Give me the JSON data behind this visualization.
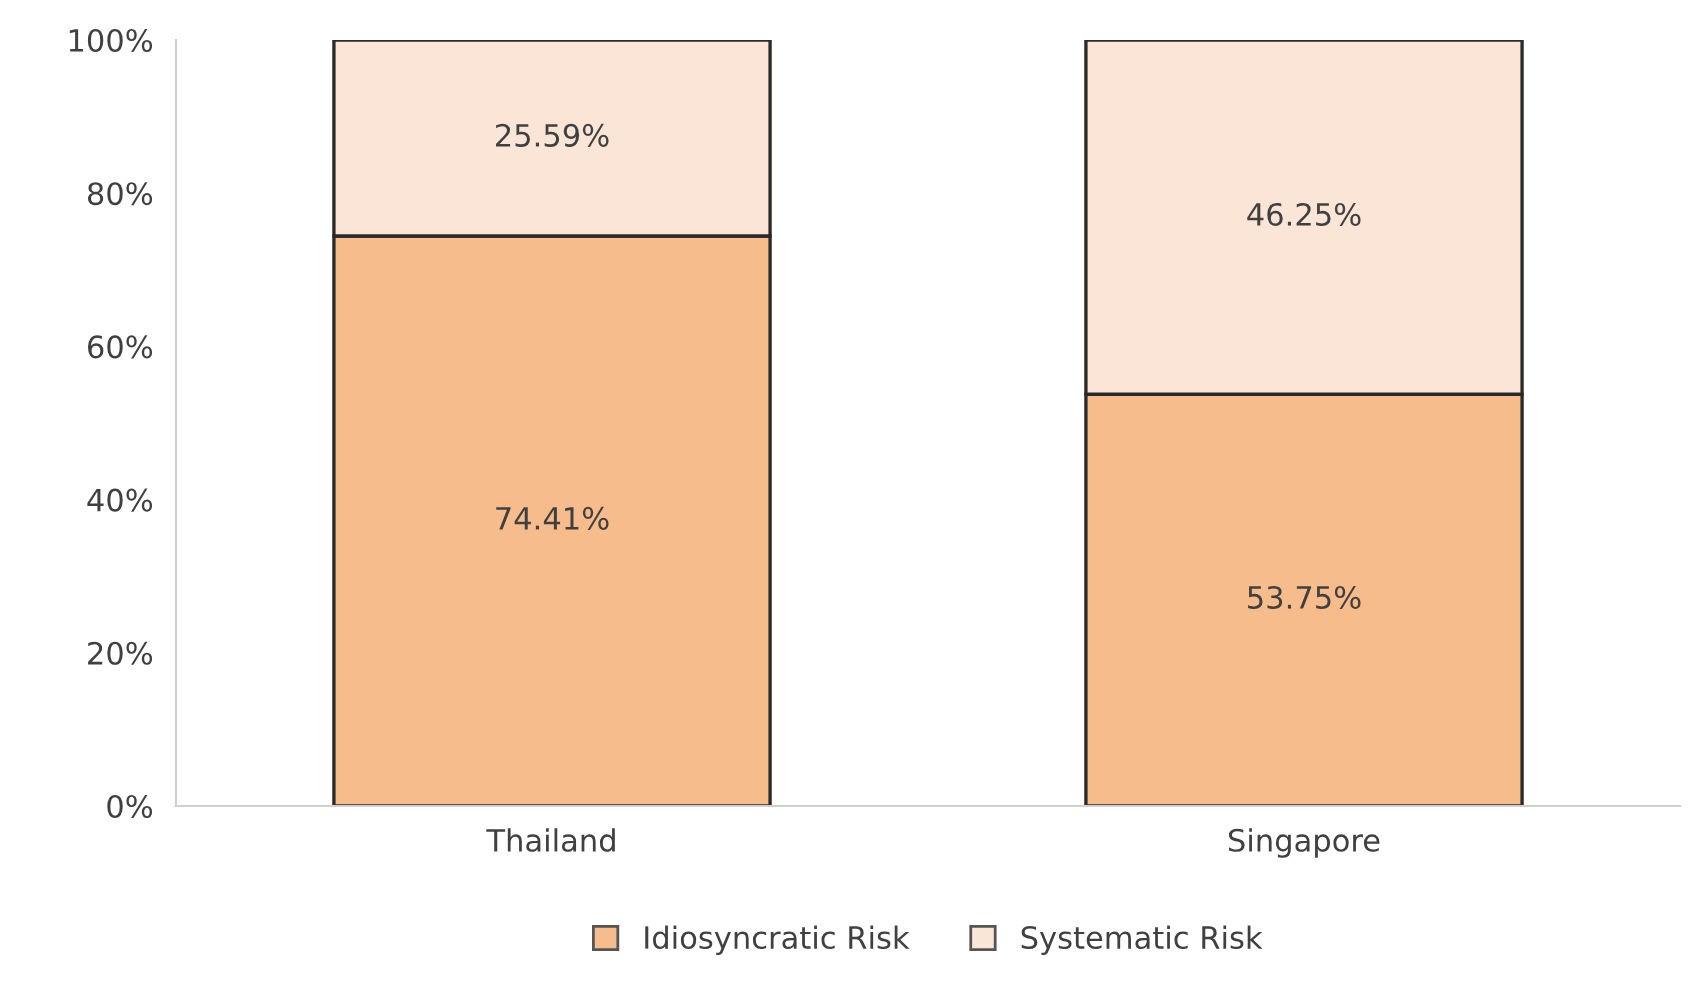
{
  "chart_data": {
    "type": "bar",
    "stacked": true,
    "categories": [
      "Thailand",
      "Singapore"
    ],
    "series": [
      {
        "name": "Idiosyncratic Risk",
        "color": "#f7bc8c",
        "values": [
          74.41,
          53.75
        ],
        "value_labels": [
          "74.41%",
          "53.75%"
        ]
      },
      {
        "name": "Systematic Risk",
        "color": "#fbe5d6",
        "values": [
          25.59,
          46.25
        ],
        "value_labels": [
          "25.59%",
          "46.25%"
        ]
      }
    ],
    "ylim": [
      0,
      100
    ],
    "yticks": [
      {
        "value": 0,
        "label": "0%"
      },
      {
        "value": 20,
        "label": "20%"
      },
      {
        "value": 40,
        "label": "40%"
      },
      {
        "value": 60,
        "label": "60%"
      },
      {
        "value": 80,
        "label": "80%"
      },
      {
        "value": 100,
        "label": "100%"
      }
    ],
    "grid": false,
    "legend": "bottom"
  }
}
